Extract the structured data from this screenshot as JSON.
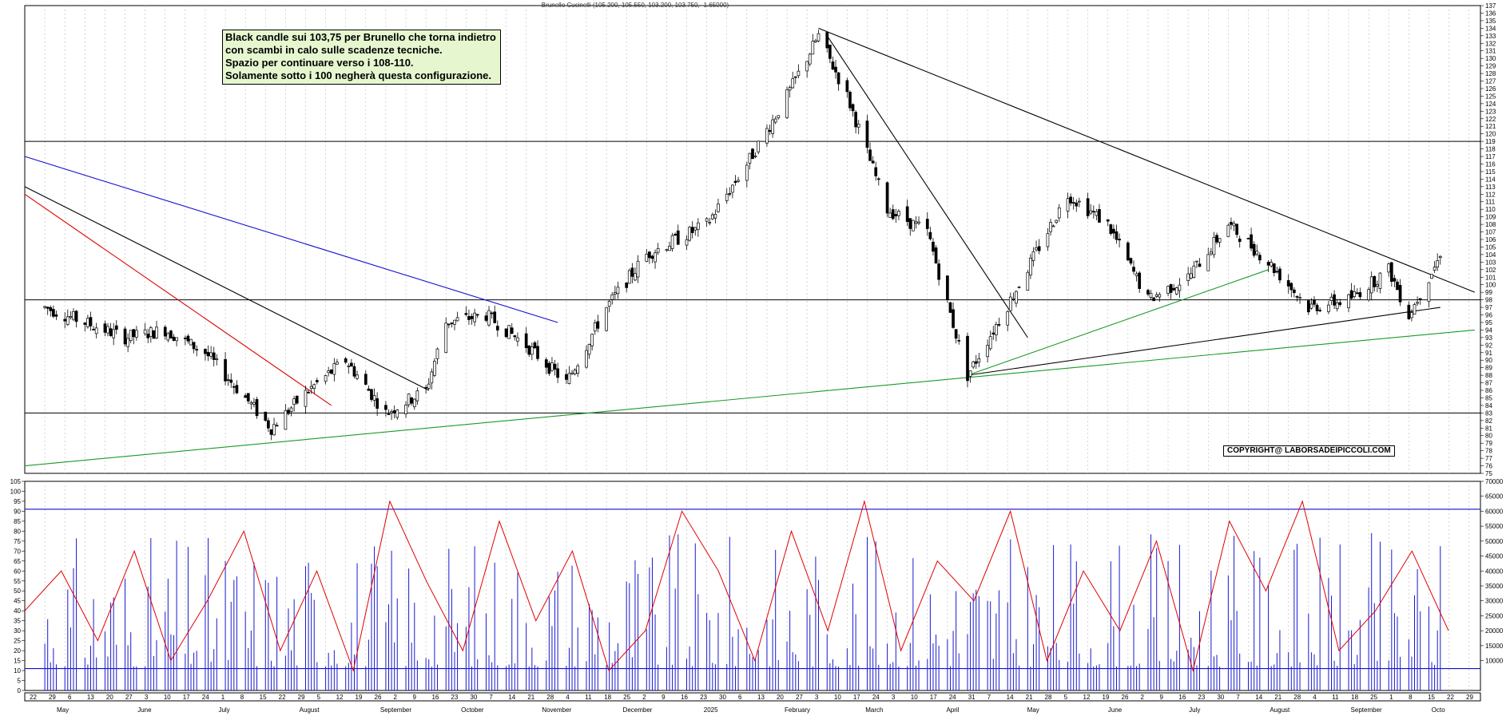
{
  "header": {
    "text": "Brunello Cucinelli (105.200, 105.550, 103.200, 103.750, -1.65000)"
  },
  "annotation": {
    "lines": [
      "Black candle sui 103,75 per Brunello che torna indietro",
      "con scambi in calo sulle scadenze tecniche.",
      "Spazio per continuare verso i 108-110.",
      "Solamente sotto i 100 negherà questa configurazione."
    ]
  },
  "copyright": "COPYRIGHT@ LABORSADEIPICCOLI.COM",
  "colors": {
    "candle_black": "#000000",
    "trend_black": "#000000",
    "trend_red": "#e00000",
    "trend_blue": "#1010d0",
    "trend_green": "#1a9a2a",
    "oscillator": "#e00000",
    "volume": "#1a1ad0",
    "level_line": "#1010d0"
  },
  "chart_data": [
    {
      "type": "candlestick",
      "title": "Brunello Cucinelli",
      "ylim": [
        75,
        137
      ],
      "y_ticks": [
        75,
        76,
        77,
        78,
        79,
        80,
        81,
        82,
        83,
        84,
        85,
        86,
        87,
        88,
        89,
        90,
        91,
        92,
        93,
        94,
        95,
        96,
        97,
        98,
        99,
        100,
        101,
        102,
        103,
        104,
        105,
        106,
        107,
        108,
        109,
        110,
        111,
        112,
        113,
        114,
        115,
        116,
        117,
        118,
        119,
        120,
        121,
        122,
        123,
        124,
        125,
        126,
        127,
        128,
        129,
        130,
        131,
        132,
        133,
        134,
        135,
        136,
        137
      ],
      "horizontal_levels": [
        119,
        98,
        83
      ],
      "close_path": [
        {
          "date": "2024-05-20",
          "close": 97
        },
        {
          "date": "2024-06-03",
          "close": 95
        },
        {
          "date": "2024-06-17",
          "close": 93
        },
        {
          "date": "2024-07-01",
          "close": 94
        },
        {
          "date": "2024-07-15",
          "close": 91
        },
        {
          "date": "2024-07-29",
          "close": 85
        },
        {
          "date": "2024-08-07",
          "close": 81
        },
        {
          "date": "2024-08-20",
          "close": 86
        },
        {
          "date": "2024-09-02",
          "close": 90
        },
        {
          "date": "2024-09-16",
          "close": 83
        },
        {
          "date": "2024-09-30",
          "close": 86
        },
        {
          "date": "2024-10-07",
          "close": 95
        },
        {
          "date": "2024-10-21",
          "close": 96
        },
        {
          "date": "2024-11-04",
          "close": 92
        },
        {
          "date": "2024-11-18",
          "close": 87
        },
        {
          "date": "2024-12-02",
          "close": 97
        },
        {
          "date": "2024-12-16",
          "close": 104
        },
        {
          "date": "2025-01-06",
          "close": 108
        },
        {
          "date": "2025-01-20",
          "close": 116
        },
        {
          "date": "2025-02-03",
          "close": 125
        },
        {
          "date": "2025-02-14",
          "close": 133
        },
        {
          "date": "2025-02-24",
          "close": 125
        },
        {
          "date": "2025-03-10",
          "close": 110
        },
        {
          "date": "2025-03-24",
          "close": 107
        },
        {
          "date": "2025-04-07",
          "close": 88
        },
        {
          "date": "2025-04-22",
          "close": 98
        },
        {
          "date": "2025-05-12",
          "close": 112
        },
        {
          "date": "2025-05-26",
          "close": 108
        },
        {
          "date": "2025-06-09",
          "close": 98
        },
        {
          "date": "2025-06-23",
          "close": 101
        },
        {
          "date": "2025-07-07",
          "close": 108
        },
        {
          "date": "2025-07-21",
          "close": 103
        },
        {
          "date": "2025-08-04",
          "close": 97
        },
        {
          "date": "2025-08-18",
          "close": 98
        },
        {
          "date": "2025-09-01",
          "close": 102
        },
        {
          "date": "2025-09-08",
          "close": 96
        },
        {
          "date": "2025-09-15",
          "close": 101
        },
        {
          "date": "2025-09-19",
          "close": 103.75
        }
      ],
      "trendlines": [
        {
          "color": "black",
          "from": {
            "date": "2024-05-13",
            "price": 113
          },
          "to": {
            "date": "2024-10-01",
            "price": 86
          }
        },
        {
          "color": "red",
          "from": {
            "date": "2024-05-13",
            "price": 112
          },
          "to": {
            "date": "2024-08-28",
            "price": 84
          }
        },
        {
          "color": "blue",
          "from": {
            "date": "2024-05-13",
            "price": 117
          },
          "to": {
            "date": "2024-11-15",
            "price": 95
          }
        },
        {
          "color": "green",
          "from": {
            "date": "2024-05-13",
            "price": 76
          },
          "to": {
            "date": "2025-10-01",
            "price": 94
          }
        },
        {
          "color": "black",
          "from": {
            "date": "2025-02-14",
            "price": 134
          },
          "to": {
            "date": "2025-10-01",
            "price": 99
          }
        },
        {
          "color": "black",
          "from": {
            "date": "2025-02-17",
            "price": 133
          },
          "to": {
            "date": "2025-04-28",
            "price": 93
          }
        },
        {
          "color": "green",
          "from": {
            "date": "2025-04-07",
            "price": 88
          },
          "to": {
            "date": "2025-07-21",
            "price": 102
          }
        },
        {
          "color": "black",
          "from": {
            "date": "2025-04-07",
            "price": 88
          },
          "to": {
            "date": "2025-09-19",
            "price": 97
          }
        }
      ]
    },
    {
      "type": "line",
      "title": "",
      "ylim": [
        0,
        105
      ],
      "y_ticks": [
        0,
        5,
        10,
        15,
        20,
        25,
        30,
        35,
        40,
        45,
        50,
        55,
        60,
        65,
        70,
        75,
        80,
        85,
        90,
        95,
        100,
        105
      ],
      "horizontal_levels": [
        91,
        11
      ],
      "series": [
        {
          "values": [
            40,
            60,
            25,
            70,
            15,
            45,
            80,
            20,
            60,
            10,
            95,
            55,
            20,
            85,
            35,
            70,
            10,
            30,
            90,
            60,
            15,
            80,
            30,
            95,
            20,
            65,
            45,
            90,
            15,
            60,
            30,
            75,
            10,
            85,
            50,
            95,
            20,
            40,
            70,
            30
          ]
        }
      ]
    },
    {
      "type": "bar",
      "title": "",
      "ylim": [
        0,
        70000
      ],
      "y_ticks": [
        10000,
        15000,
        20000,
        25000,
        30000,
        35000,
        40000,
        45000,
        50000,
        55000,
        60000,
        65000,
        70000
      ]
    }
  ],
  "x_axis": {
    "day_labels": [
      "22",
      "29",
      "6",
      "13",
      "20",
      "27",
      "3",
      "10",
      "17",
      "24",
      "1",
      "8",
      "15",
      "22",
      "29",
      "5",
      "12",
      "19",
      "26",
      "2",
      "9",
      "16",
      "23",
      "30",
      "7",
      "14",
      "21",
      "28",
      "4",
      "11",
      "18",
      "25",
      "2",
      "9",
      "16",
      "23",
      "30",
      "6",
      "13",
      "20",
      "27",
      "3",
      "10",
      "17",
      "24",
      "3",
      "10",
      "17",
      "24",
      "31",
      "7",
      "14",
      "21",
      "28",
      "5",
      "12",
      "19",
      "26",
      "2",
      "9",
      "16",
      "23",
      "30",
      "7",
      "14",
      "21",
      "28",
      "4",
      "11",
      "18",
      "25",
      "1",
      "8",
      "15",
      "22",
      "29"
    ],
    "month_labels": [
      "May",
      "June",
      "July",
      "August",
      "September",
      "October",
      "November",
      "December",
      "2025",
      "February",
      "March",
      "April",
      "May",
      "June",
      "July",
      "August",
      "September",
      "Octo"
    ]
  }
}
